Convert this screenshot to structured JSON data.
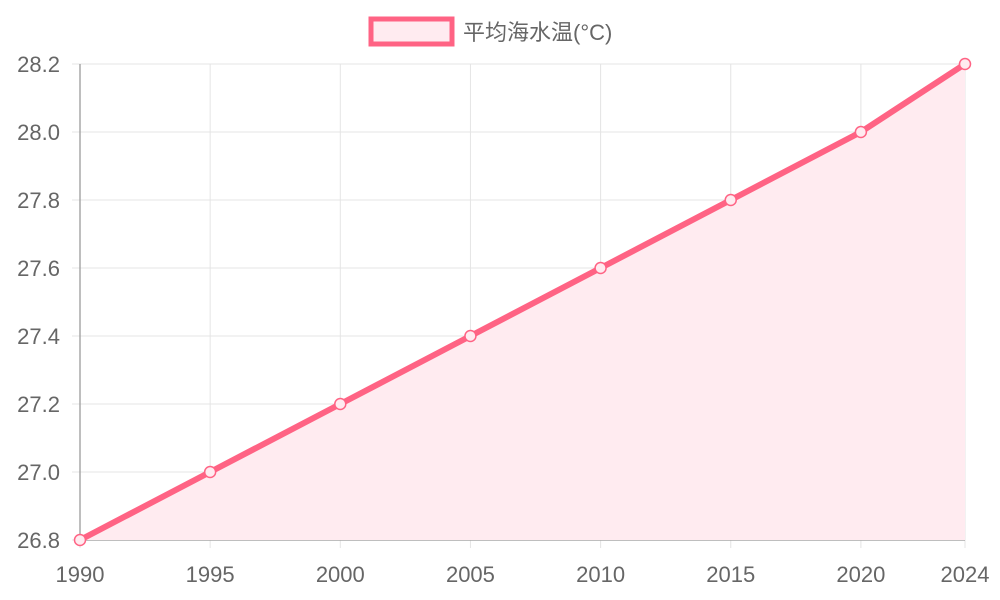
{
  "chart_data": {
    "type": "area",
    "x": [
      1990,
      1995,
      2000,
      2005,
      2010,
      2015,
      2020,
      2024
    ],
    "x_tick_labels": [
      "1990",
      "1995",
      "2000",
      "2005",
      "2010",
      "2015",
      "2020",
      "2024"
    ],
    "series": [
      {
        "name": "平均海水温(°C)",
        "values": [
          26.8,
          27.0,
          27.2,
          27.4,
          27.6,
          27.8,
          28.0,
          28.2
        ]
      }
    ],
    "xlim": [
      1990,
      2024
    ],
    "ylim": [
      26.8,
      28.2
    ],
    "y_ticks": [
      26.8,
      27.0,
      27.2,
      27.4,
      27.6,
      27.8,
      28.0,
      28.2
    ],
    "y_tick_labels": [
      "26.8",
      "27.0",
      "27.2",
      "27.4",
      "27.6",
      "27.8",
      "28.0",
      "28.2"
    ],
    "grid": true,
    "legend_position": "top-center",
    "colors": {
      "line": "#ff6384",
      "fill": "#ffebf0",
      "grid": "#e4e4e4",
      "axis": "#a8a8a8",
      "text": "#666666"
    }
  }
}
